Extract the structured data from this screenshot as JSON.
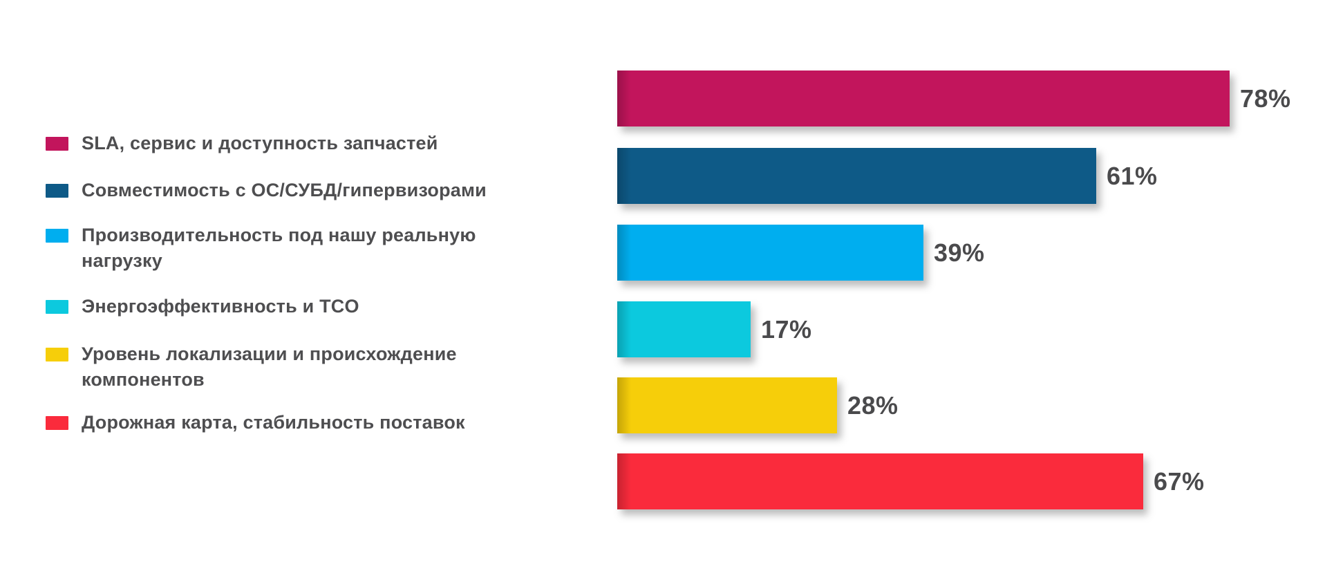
{
  "chart_data": {
    "type": "bar",
    "orientation": "horizontal",
    "title": "",
    "xlabel": "",
    "ylabel": "",
    "xlim": [
      0,
      100
    ],
    "grid": false,
    "legend_position": "left",
    "categories": [
      "SLA, сервис и доступность запчастей",
      "Совместимость с ОС/СУБД/гипервизорами",
      "Производительность под нашу реальную нагрузку",
      "Энергоэффективность и TCO",
      "Уровень локализации и происхождение компонентов",
      "Дорожная карта, стабильность поставок"
    ],
    "values": [
      78,
      61,
      39,
      17,
      28,
      67
    ],
    "value_labels": [
      "78%",
      "61%",
      "39%",
      "17%",
      "28%",
      "67%"
    ],
    "colors": [
      "#C2155C",
      "#0E5A87",
      "#00AEEF",
      "#0CC9DE",
      "#F6CE0A",
      "#FA2B3C"
    ],
    "text_color": "#4A4A4C"
  }
}
